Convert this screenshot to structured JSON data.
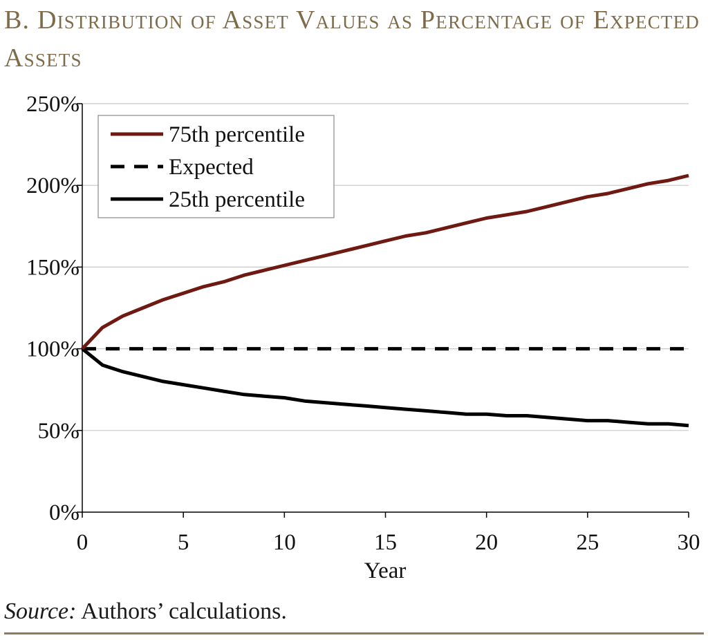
{
  "title": "B. Distribution of Asset Values as Percentage of Expected Assets",
  "source": {
    "label": "Source:",
    "text": " Authors’ calculations."
  },
  "chart_data": {
    "type": "line",
    "xlabel": "Year",
    "ylabel": "",
    "xlim": [
      0,
      30
    ],
    "ylim": [
      0,
      250
    ],
    "x_ticks": [
      0,
      5,
      10,
      15,
      20,
      25,
      30
    ],
    "y_ticks": [
      0,
      50,
      100,
      150,
      200,
      250
    ],
    "y_tick_format": "percent",
    "grid": "horizontal",
    "legend_position": "top-left",
    "x": [
      0,
      1,
      2,
      3,
      4,
      5,
      6,
      7,
      8,
      9,
      10,
      11,
      12,
      13,
      14,
      15,
      16,
      17,
      18,
      19,
      20,
      21,
      22,
      23,
      24,
      25,
      26,
      27,
      28,
      29,
      30
    ],
    "series": [
      {
        "name": "75th percentile",
        "color": "#6e1a12",
        "dash": "solid",
        "values": [
          100,
          113,
          120,
          125,
          130,
          134,
          138,
          141,
          145,
          148,
          151,
          154,
          157,
          160,
          163,
          166,
          169,
          171,
          174,
          177,
          180,
          182,
          184,
          187,
          190,
          193,
          195,
          198,
          201,
          203,
          206
        ]
      },
      {
        "name": "Expected",
        "color": "#000000",
        "dash": "dashed",
        "values": [
          100,
          100,
          100,
          100,
          100,
          100,
          100,
          100,
          100,
          100,
          100,
          100,
          100,
          100,
          100,
          100,
          100,
          100,
          100,
          100,
          100,
          100,
          100,
          100,
          100,
          100,
          100,
          100,
          100,
          100,
          100
        ]
      },
      {
        "name": "25th percentile",
        "color": "#000000",
        "dash": "solid",
        "values": [
          100,
          90,
          86,
          83,
          80,
          78,
          76,
          74,
          72,
          71,
          70,
          68,
          67,
          66,
          65,
          64,
          63,
          62,
          61,
          60,
          60,
          59,
          59,
          58,
          57,
          56,
          56,
          55,
          54,
          54,
          53
        ]
      }
    ]
  }
}
